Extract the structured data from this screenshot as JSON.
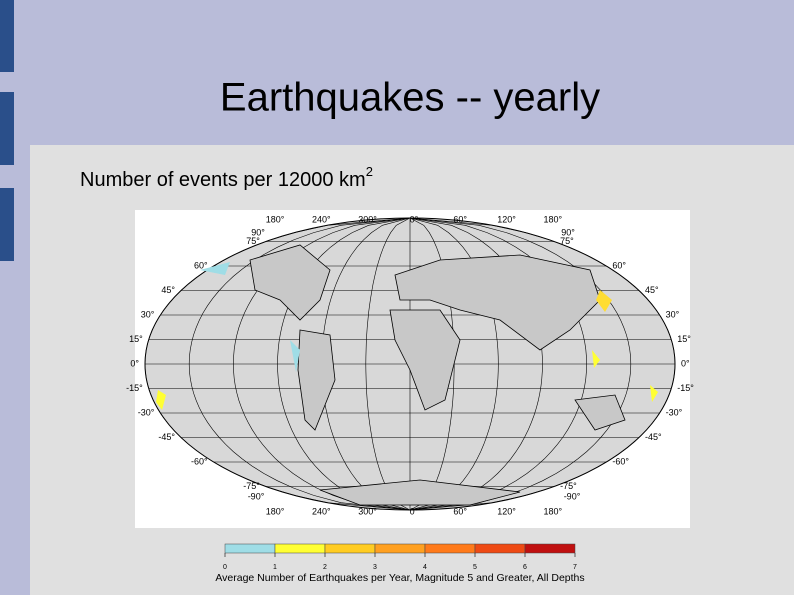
{
  "slide": {
    "title": "Earthquakes -- yearly",
    "subtitle": "Number of events per 12000 km",
    "subtitle_sup": "2",
    "map": {
      "lon_labels": [
        "180°",
        "240°",
        "300°",
        "0°",
        "60°",
        "120°",
        "180°"
      ],
      "pole_labels": [
        "90°",
        "-90°"
      ],
      "lat_labels": [
        "75°",
        "60°",
        "45°",
        "30°",
        "15°",
        "0°",
        "-15°",
        "-30°",
        "-45°",
        "-60°",
        "-75°"
      ]
    },
    "colorbar": {
      "ticks": [
        0,
        1,
        2,
        3,
        4,
        5,
        6,
        7
      ],
      "colors": [
        "#9fdde6",
        "#ffff33",
        "#ffcc22",
        "#ffa020",
        "#ff7a1a",
        "#ee4a14",
        "#c01010"
      ],
      "caption": "Average Number of Earthquakes per Year, Magnitude 5 and Greater, All Depths"
    }
  }
}
